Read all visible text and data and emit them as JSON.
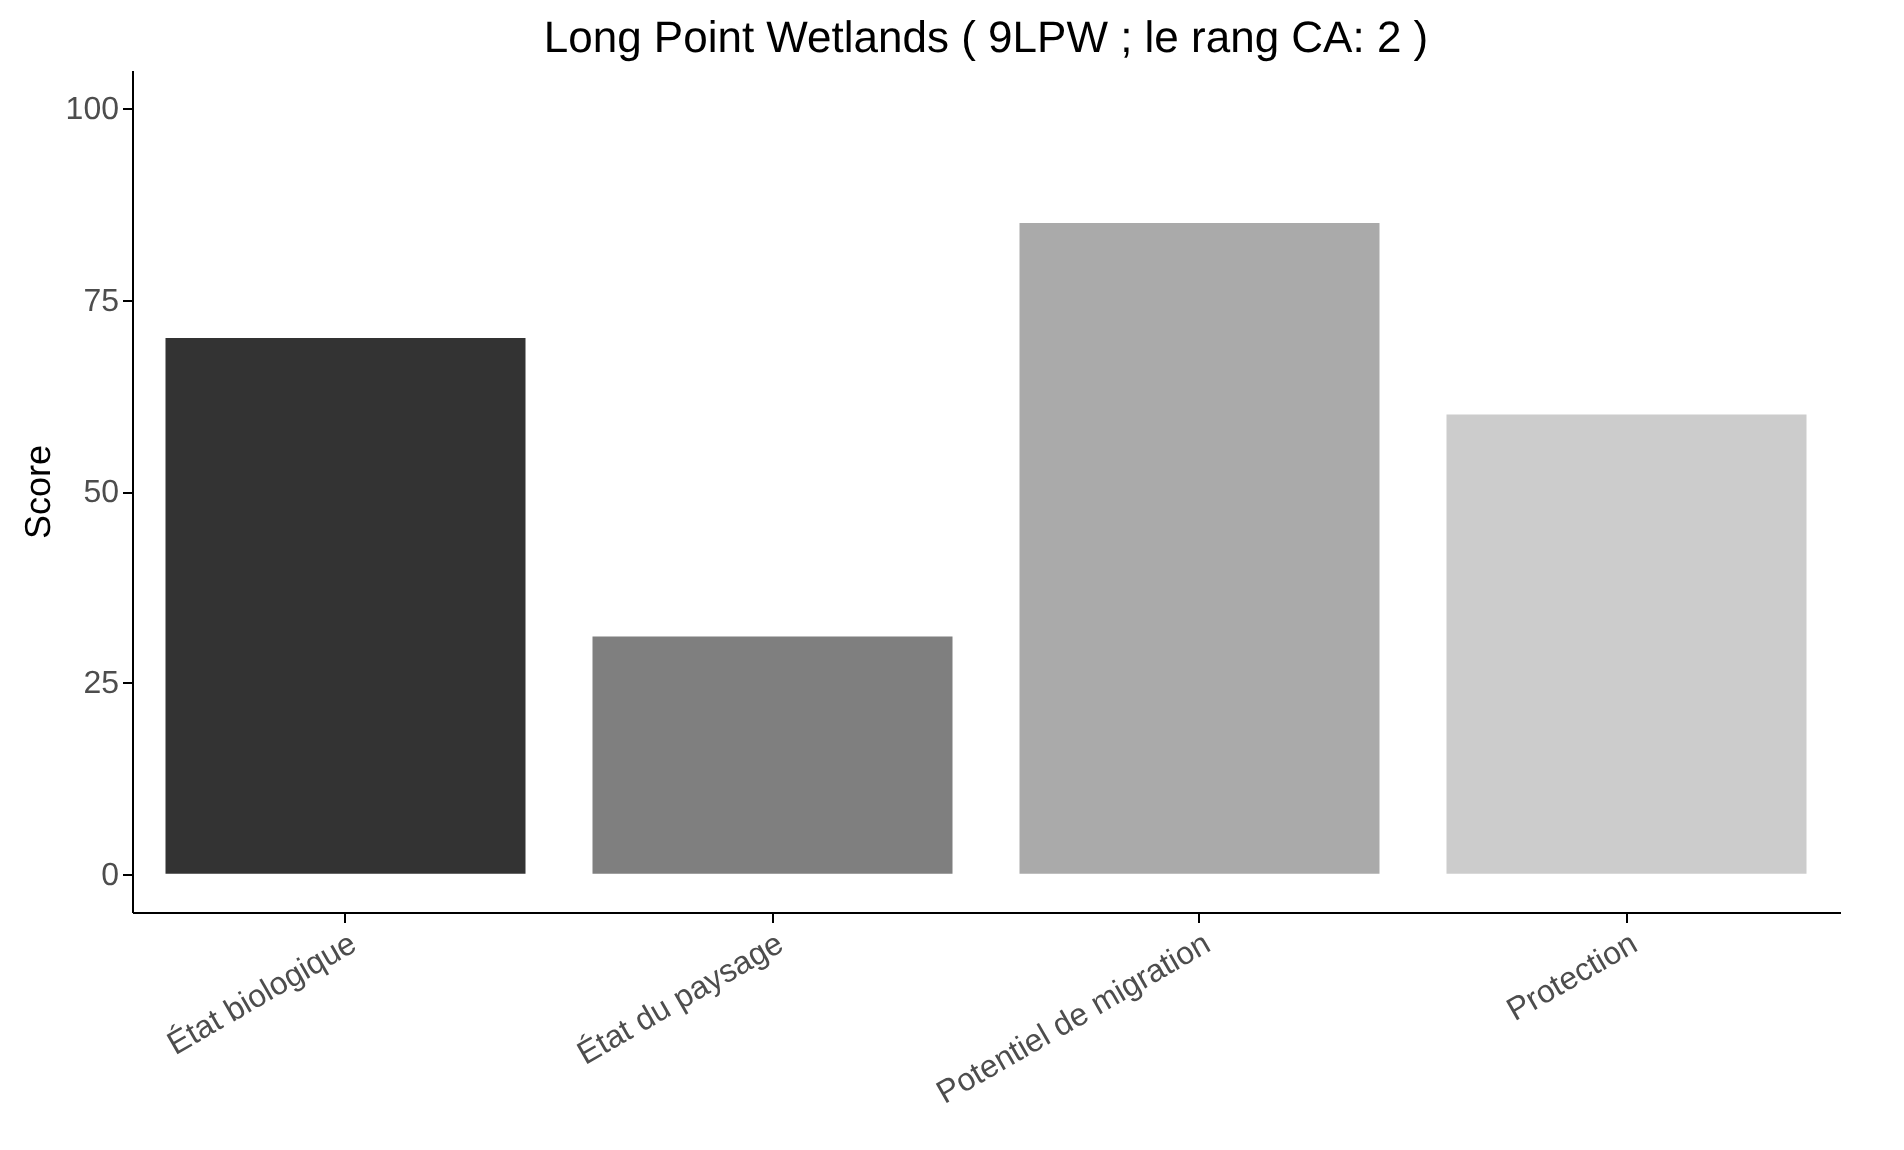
{
  "chart_data": {
    "type": "bar",
    "title": "Long Point Wetlands ( 9LPW ; le rang CA: 2 )",
    "ylabel": "Score",
    "categories": [
      "État biologique",
      "État du paysage",
      "Potentiel de migration",
      "Protection"
    ],
    "values": [
      70,
      31,
      85,
      60
    ],
    "colors": [
      "#333333",
      "#7f7f7f",
      "#aaaaaa",
      "#cccccc"
    ],
    "ylim": [
      -5,
      105
    ],
    "yticks": [
      0,
      25,
      50,
      75,
      100
    ],
    "grid": false
  }
}
